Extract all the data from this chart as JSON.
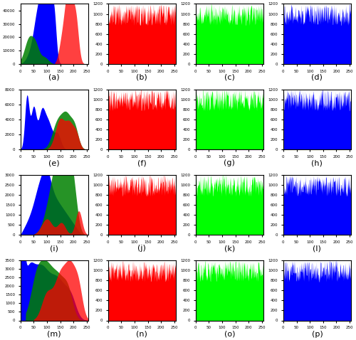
{
  "subplot_labels": [
    "(a)",
    "(b)",
    "(c)",
    "(d)",
    "(e)",
    "(f)",
    "(g)",
    "(h)",
    "(i)",
    "(j)",
    "(k)",
    "(l)",
    "(m)",
    "(n)",
    "(o)",
    "(p)"
  ],
  "bg_color": "#ffffff",
  "lena_ylim": 45000,
  "lena_yticks": [
    0,
    10000,
    20000,
    30000,
    40000
  ],
  "pepper_ylim": 8000,
  "pepper_yticks": [
    0,
    2000,
    4000,
    6000,
    8000
  ],
  "baboon_ylim": 3000,
  "baboon_yticks": [
    0,
    500,
    1000,
    1500,
    2000,
    2500,
    3000
  ],
  "barbara_ylim": 3500,
  "barbara_yticks": [
    0,
    500,
    1000,
    1500,
    2000,
    2500,
    3000,
    3500
  ],
  "cipher_ylim": 1200,
  "cipher_yticks": [
    0,
    200,
    400,
    600,
    800,
    1000,
    1200
  ],
  "xticks": [
    0,
    50,
    100,
    150,
    200,
    250
  ]
}
